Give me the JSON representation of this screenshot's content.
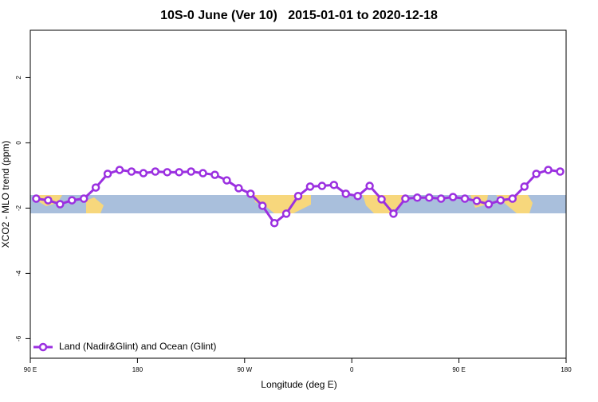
{
  "chart_data": {
    "type": "line",
    "title": "10S-0 June (Ver 10)   2015-01-01 to 2020-12-18",
    "x_label": "Longitude (deg E)",
    "y_label": "XCO2 - MLO trend (ppm)",
    "x": [
      95,
      105,
      115,
      125,
      135,
      145,
      155,
      165,
      175,
      185,
      195,
      205,
      215,
      225,
      235,
      245,
      255,
      265,
      275,
      285,
      295,
      305,
      315,
      325,
      335,
      345,
      355,
      365,
      375,
      385,
      395,
      405,
      415,
      425,
      435,
      445,
      455,
      465,
      475,
      485,
      495,
      505,
      515,
      525,
      535
    ],
    "series": [
      {
        "name": "Land (Nadir&Glint) and Ocean (Glint)",
        "color": "#9b30e0",
        "values": [
          -1.71,
          -1.76,
          -1.88,
          -1.76,
          -1.71,
          -1.37,
          -0.95,
          -0.83,
          -0.88,
          -0.93,
          -0.88,
          -0.9,
          -0.9,
          -0.88,
          -0.93,
          -0.98,
          -1.15,
          -1.39,
          -1.56,
          -1.93,
          -2.46,
          -2.17,
          -1.63,
          -1.34,
          -1.32,
          -1.29,
          -1.56,
          -1.63,
          -1.32,
          -1.73,
          -2.17,
          -1.71,
          -1.68,
          -1.68,
          -1.71,
          -1.66,
          -1.71,
          -1.78,
          -1.88,
          -1.76,
          -1.71,
          -1.34,
          -0.95,
          -0.83,
          -0.88
        ]
      }
    ],
    "xlim": [
      90,
      540
    ],
    "xticks": [
      {
        "value": 90,
        "label": "90 E"
      },
      180,
      {
        "value": 270,
        "label": "90 W"
      },
      {
        "value": 360,
        "label": "0"
      },
      {
        "value": 450,
        "label": "90 E"
      },
      {
        "value": 540,
        "label": "180"
      }
    ],
    "ylim": [
      -6.6,
      3.45
    ],
    "yticks": [
      -6,
      -4,
      -2,
      0,
      2
    ],
    "legend": "bottom-left"
  }
}
